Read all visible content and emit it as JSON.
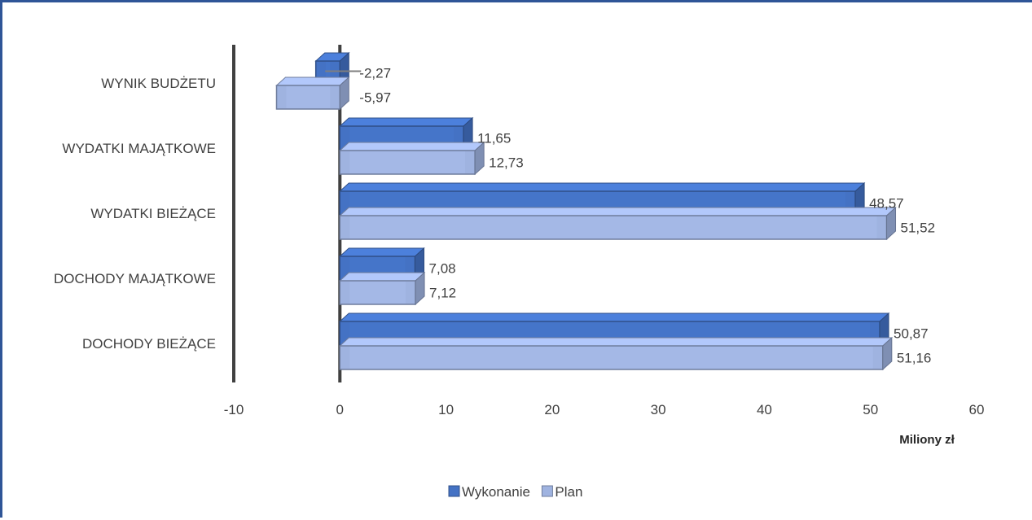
{
  "chart_data": {
    "type": "bar",
    "orientation": "horizontal",
    "style": "3d",
    "categories": [
      "WYNIK BUDŻETU",
      "WYDATKI MAJĄTKOWE",
      "WYDATKI BIEŻĄCE",
      "DOCHODY MAJĄTKOWE",
      "DOCHODY BIEŻĄCE"
    ],
    "series": [
      {
        "name": "Wykonanie",
        "color": "#4472c4",
        "values": [
          -2.27,
          11.65,
          48.57,
          7.08,
          50.87
        ],
        "labels": [
          "-2,27",
          "11,65",
          "48,57",
          "7,08",
          "50,87"
        ]
      },
      {
        "name": "Plan",
        "color": "#9fb3e0",
        "values": [
          -5.97,
          12.73,
          51.52,
          7.12,
          51.16
        ],
        "labels": [
          "-5,97",
          "12,73",
          "51,52",
          "7,12",
          "51,16"
        ]
      }
    ],
    "xlim": [
      -10,
      60
    ],
    "xticks": [
      -10,
      0,
      10,
      20,
      30,
      40,
      50,
      60
    ],
    "xtick_labels": [
      "-10",
      "0",
      "10",
      "20",
      "30",
      "40",
      "50",
      "60"
    ],
    "xlabel": "Miliony zł",
    "ylabel": "",
    "title": "",
    "grid": false,
    "legend": "bottom"
  }
}
